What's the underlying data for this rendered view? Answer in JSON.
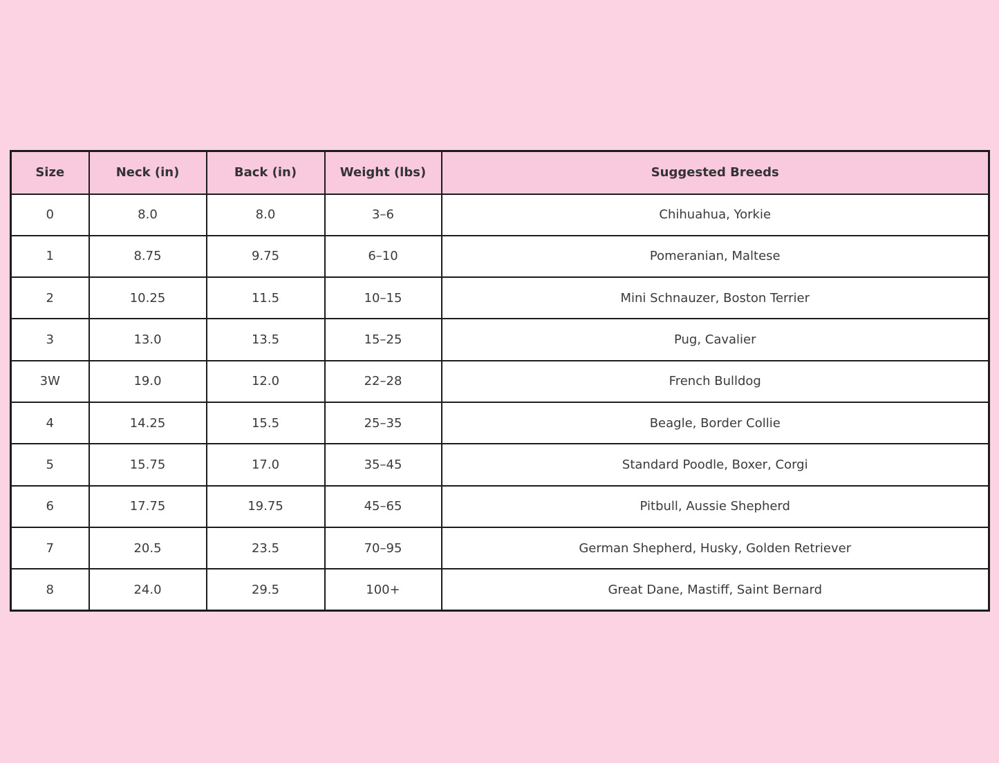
{
  "chart_data": {
    "type": "table",
    "title": "",
    "columns": [
      "Size",
      "Neck (in)",
      "Back (in)",
      "Weight (lbs)",
      "Suggested Breeds"
    ],
    "rows": [
      [
        "0",
        "8.0",
        "8.0",
        "3–6",
        "Chihuahua, Yorkie"
      ],
      [
        "1",
        "8.75",
        "9.75",
        "6–10",
        "Pomeranian, Maltese"
      ],
      [
        "2",
        "10.25",
        "11.5",
        "10–15",
        "Mini Schnauzer, Boston Terrier"
      ],
      [
        "3",
        "13.0",
        "13.5",
        "15–25",
        "Pug, Cavalier"
      ],
      [
        "3W",
        "19.0",
        "12.0",
        "22–28",
        "French Bulldog"
      ],
      [
        "4",
        "14.25",
        "15.5",
        "25–35",
        "Beagle, Border Collie"
      ],
      [
        "5",
        "15.75",
        "17.0",
        "35–45",
        "Standard Poodle, Boxer, Corgi"
      ],
      [
        "6",
        "17.75",
        "19.75",
        "45–65",
        "Pitbull, Aussie Shepherd"
      ],
      [
        "7",
        "20.5",
        "23.5",
        "70–95",
        "German Shepherd, Husky, Golden Retriever"
      ],
      [
        "8",
        "24.0",
        "29.5",
        "100+",
        "Great Dane, Mastiff, Saint Bernard"
      ]
    ],
    "colors": {
      "page_background": "#fcd3e3",
      "header_background": "#f9cade",
      "cell_background": "#ffffff",
      "border": "#1c1c1c",
      "text": "#3a3a3a"
    }
  }
}
